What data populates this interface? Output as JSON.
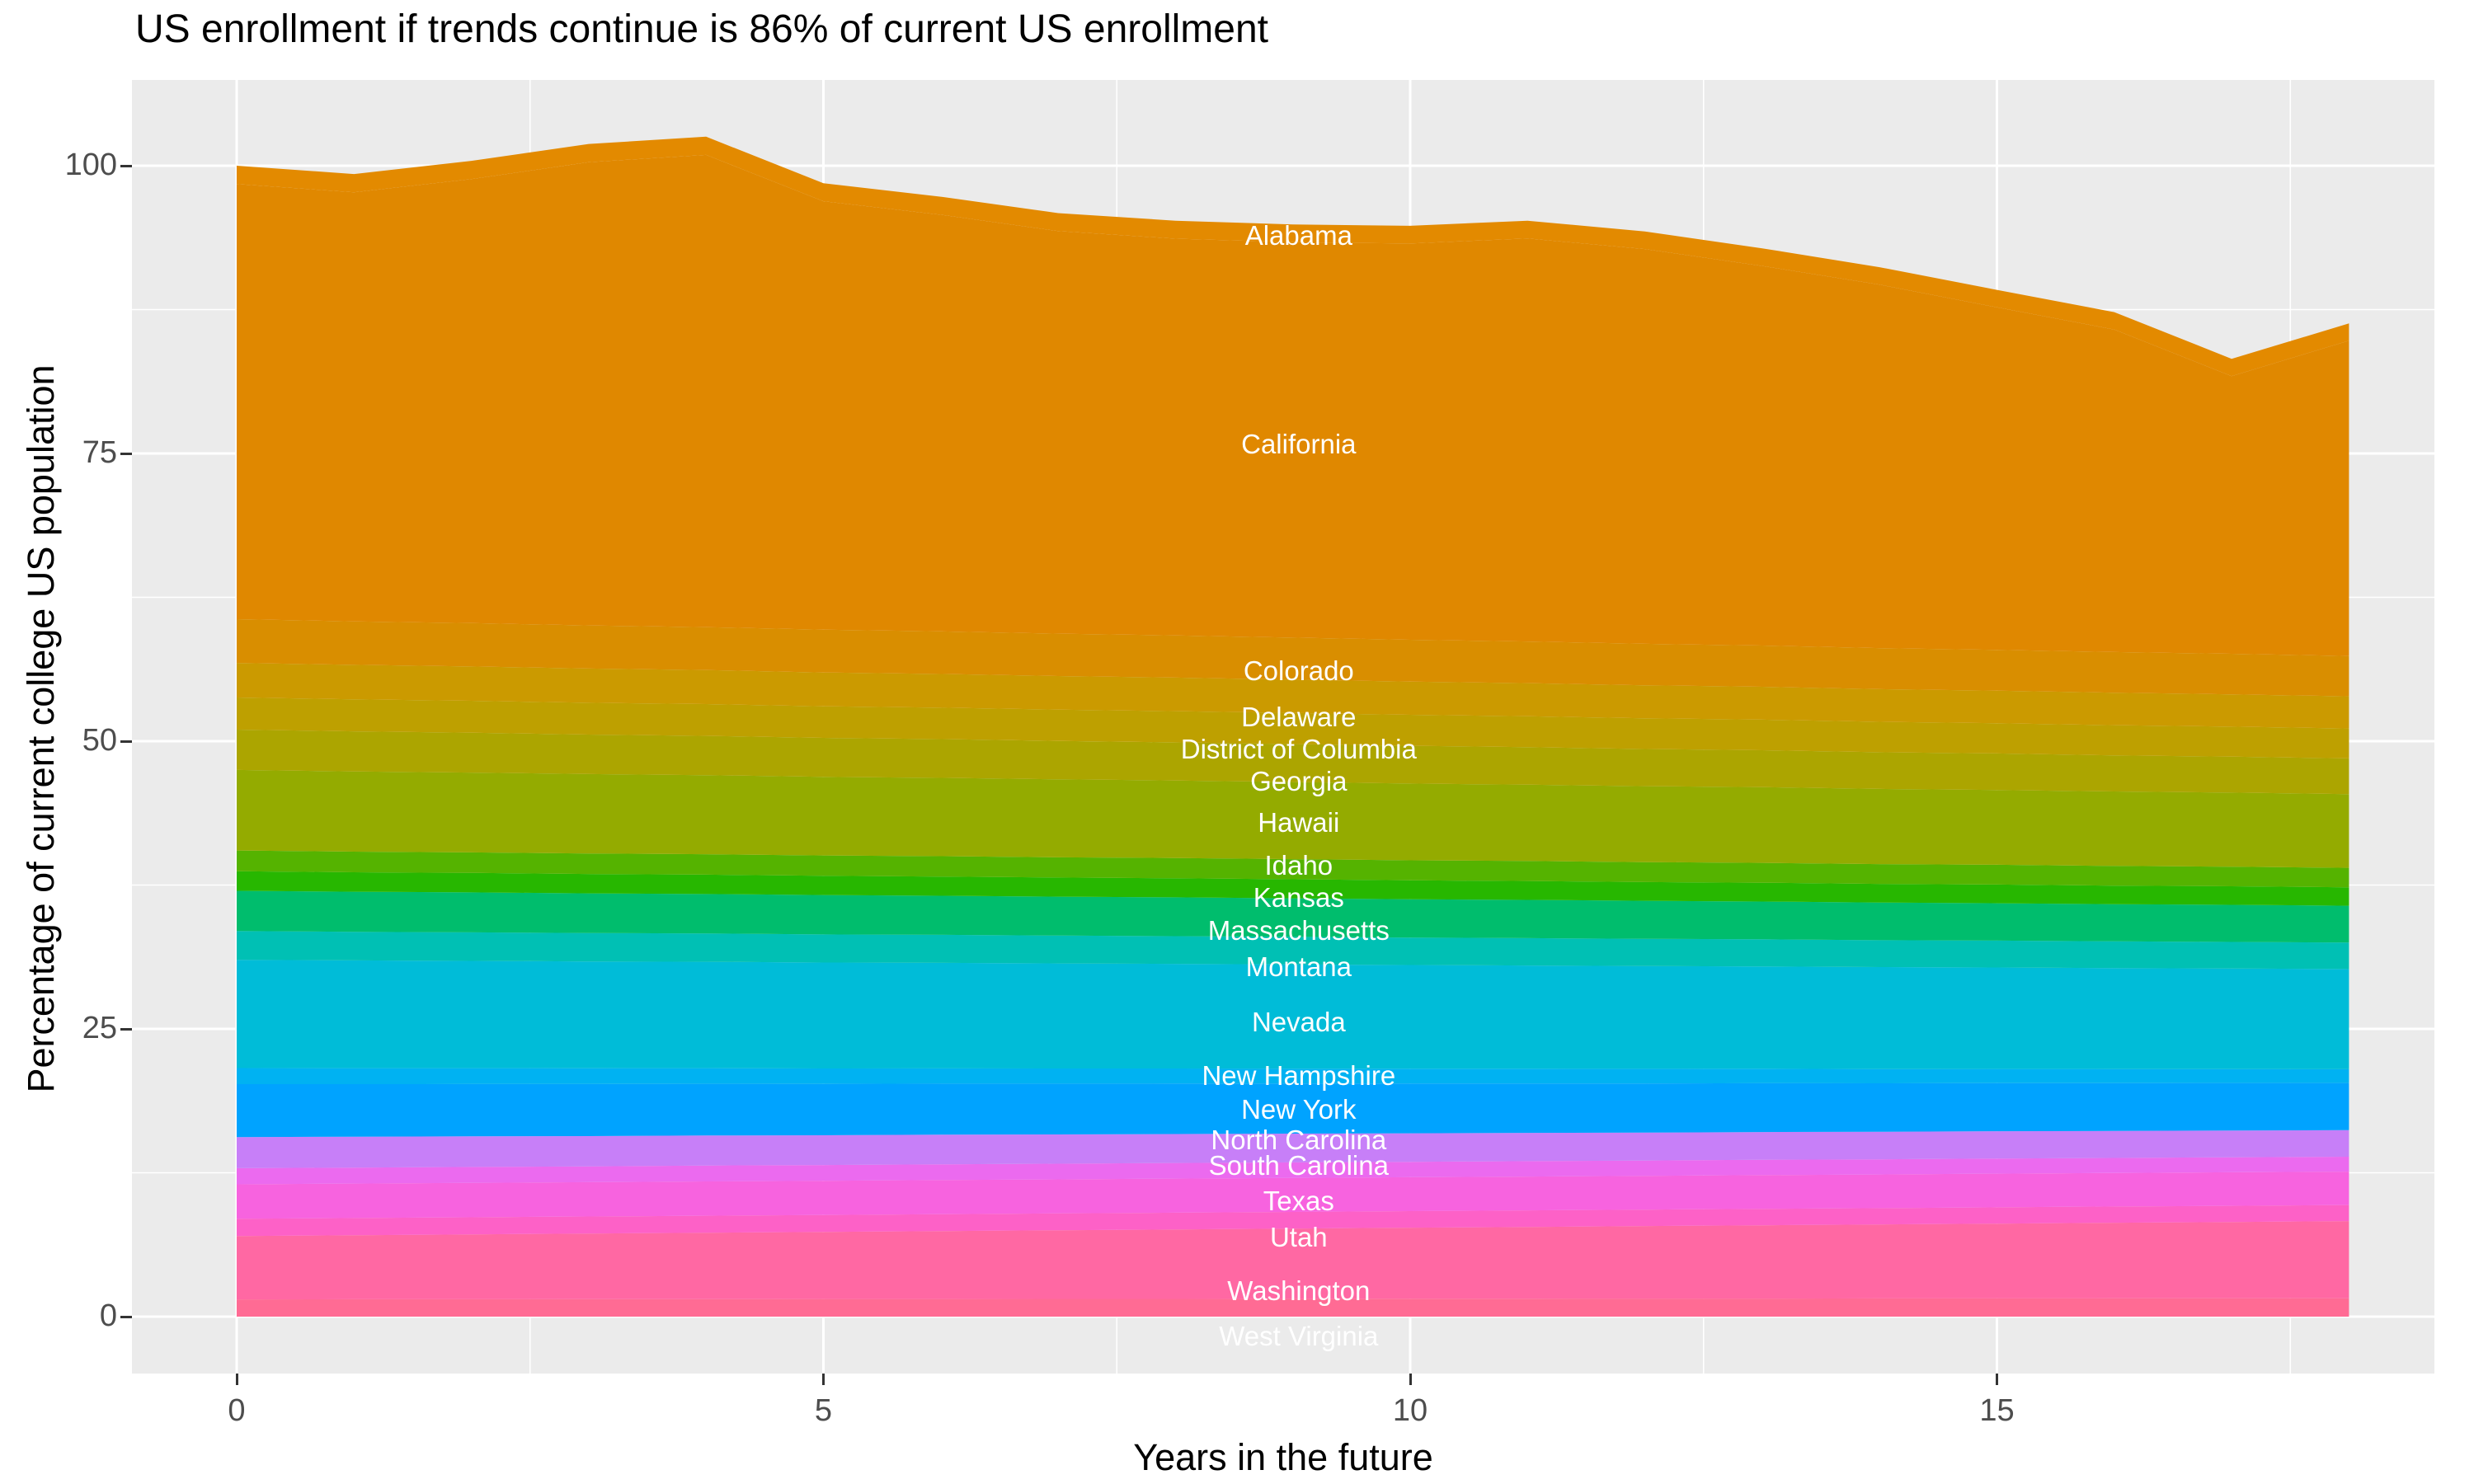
{
  "title": "US enrollment if trends continue is 86% of current US enrollment",
  "x_axis": {
    "label": "Years in the future",
    "ticks": [
      0,
      5,
      10,
      15
    ],
    "minor_ticks": [
      2.5,
      7.5,
      12.5,
      17.5
    ],
    "range": [
      0,
      18
    ]
  },
  "y_axis": {
    "label": "Percentage of current college US population",
    "ticks": [
      0,
      25,
      50,
      75,
      100
    ],
    "minor_ticks": [
      12.5,
      37.5,
      62.5,
      87.5
    ],
    "range": [
      0,
      102.5
    ]
  },
  "theme": {
    "panel_background": "#EBEBEB",
    "grid_color": "#FFFFFF",
    "tick_text_color": "#4D4D4D",
    "tick_mark_color": "#333333",
    "title_color": "#000000",
    "area_label_color": "#FFFFFF"
  },
  "chart_data": {
    "type": "area",
    "stacked": true,
    "title": "US enrollment if trends continue is 86% of current US enrollment",
    "xlabel": "Years in the future",
    "ylabel": "Percentage of current college US population",
    "x": [
      0,
      1,
      2,
      3,
      4,
      5,
      6,
      7,
      8,
      9,
      10,
      11,
      12,
      13,
      14,
      15,
      16,
      17,
      18
    ],
    "ylim": [
      0,
      102.5
    ],
    "total_by_year": [
      100.0,
      99.3,
      100.4,
      101.9,
      102.5,
      98.5,
      97.3,
      95.9,
      95.2,
      94.9,
      94.8,
      95.2,
      94.3,
      92.8,
      91.2,
      89.2,
      87.3,
      83.2,
      86.3
    ],
    "label_x_year": 9.05,
    "series": [
      {
        "name": "Alabama",
        "color": "#E38A00",
        "label_pct": 93.9,
        "values": [
          1.6,
          1.59,
          1.59,
          1.58,
          1.58,
          1.57,
          1.57,
          1.56,
          1.56,
          1.55,
          1.54,
          1.54,
          1.53,
          1.53,
          1.52,
          1.52,
          1.51,
          1.51,
          1.5
        ]
      },
      {
        "name": "California",
        "color": "#E08800",
        "label_pct": 75.8,
        "values": [
          37.8,
          37.28,
          38.57,
          40.25,
          41.03,
          37.22,
          36.2,
          34.98,
          34.47,
          34.35,
          34.43,
          35.02,
          34.3,
          32.98,
          31.57,
          29.75,
          28.03,
          24.12,
          27.4
        ]
      },
      {
        "name": "Colorado",
        "color": "#D98E00",
        "label_pct": 56.1,
        "values": [
          3.8,
          3.78,
          3.77,
          3.75,
          3.73,
          3.72,
          3.7,
          3.68,
          3.67,
          3.65,
          3.63,
          3.62,
          3.6,
          3.58,
          3.57,
          3.55,
          3.53,
          3.52,
          3.5
        ]
      },
      {
        "name": "Delaware",
        "color": "#CB9A00",
        "label_pct": 52.1,
        "values": [
          3.0,
          2.99,
          2.98,
          2.97,
          2.96,
          2.94,
          2.93,
          2.92,
          2.91,
          2.9,
          2.89,
          2.88,
          2.87,
          2.86,
          2.84,
          2.83,
          2.82,
          2.81,
          2.8
        ]
      },
      {
        "name": "District of Columbia",
        "color": "#BEA000",
        "label_pct": 49.3,
        "values": [
          2.8,
          2.79,
          2.78,
          2.77,
          2.76,
          2.74,
          2.73,
          2.72,
          2.71,
          2.7,
          2.69,
          2.68,
          2.67,
          2.66,
          2.64,
          2.63,
          2.62,
          2.61,
          2.6
        ]
      },
      {
        "name": "Georgia",
        "color": "#ACA500",
        "label_pct": 46.5,
        "values": [
          3.5,
          3.48,
          3.46,
          3.43,
          3.41,
          3.39,
          3.37,
          3.34,
          3.32,
          3.3,
          3.28,
          3.26,
          3.23,
          3.21,
          3.19,
          3.17,
          3.14,
          3.12,
          3.1
        ]
      },
      {
        "name": "Hawaii",
        "color": "#94AB00",
        "label_pct": 42.9,
        "values": [
          7.0,
          6.97,
          6.93,
          6.9,
          6.87,
          6.83,
          6.8,
          6.77,
          6.73,
          6.7,
          6.67,
          6.63,
          6.6,
          6.57,
          6.53,
          6.5,
          6.47,
          6.43,
          6.4
        ]
      },
      {
        "name": "Idaho",
        "color": "#55B300",
        "label_pct": 39.2,
        "values": [
          1.8,
          1.79,
          1.79,
          1.78,
          1.78,
          1.77,
          1.77,
          1.76,
          1.76,
          1.75,
          1.74,
          1.74,
          1.73,
          1.73,
          1.72,
          1.72,
          1.71,
          1.71,
          1.7
        ]
      },
      {
        "name": "Kansas",
        "color": "#27B700",
        "label_pct": 36.4,
        "values": [
          1.7,
          1.69,
          1.69,
          1.68,
          1.68,
          1.67,
          1.67,
          1.66,
          1.66,
          1.65,
          1.64,
          1.64,
          1.63,
          1.63,
          1.62,
          1.62,
          1.61,
          1.61,
          1.6
        ]
      },
      {
        "name": "Massachusetts",
        "color": "#00BD6D",
        "label_pct": 33.5,
        "values": [
          3.5,
          3.48,
          3.47,
          3.45,
          3.43,
          3.42,
          3.4,
          3.38,
          3.37,
          3.35,
          3.33,
          3.32,
          3.3,
          3.28,
          3.27,
          3.25,
          3.23,
          3.22,
          3.2
        ]
      },
      {
        "name": "Montana",
        "color": "#00C0B4",
        "label_pct": 30.4,
        "values": [
          2.5,
          2.49,
          2.48,
          2.47,
          2.46,
          2.44,
          2.43,
          2.42,
          2.41,
          2.4,
          2.39,
          2.38,
          2.37,
          2.36,
          2.34,
          2.33,
          2.32,
          2.31,
          2.3
        ]
      },
      {
        "name": "Nevada",
        "color": "#00BCD8",
        "label_pct": 25.6,
        "values": [
          9.4,
          9.36,
          9.32,
          9.28,
          9.24,
          9.21,
          9.17,
          9.13,
          9.09,
          9.05,
          9.01,
          8.97,
          8.93,
          8.89,
          8.86,
          8.82,
          8.78,
          8.74,
          8.7
        ]
      },
      {
        "name": "New Hampshire",
        "color": "#00B2F2",
        "label_pct": 20.9,
        "values": [
          1.4,
          1.39,
          1.38,
          1.37,
          1.36,
          1.34,
          1.33,
          1.32,
          1.31,
          1.3,
          1.29,
          1.28,
          1.27,
          1.26,
          1.24,
          1.23,
          1.22,
          1.21,
          1.2
        ]
      },
      {
        "name": "New York",
        "color": "#00A3FF",
        "label_pct": 18.0,
        "values": [
          4.6,
          4.57,
          4.54,
          4.52,
          4.49,
          4.46,
          4.43,
          4.41,
          4.38,
          4.35,
          4.32,
          4.29,
          4.27,
          4.24,
          4.21,
          4.18,
          4.16,
          4.13,
          4.1
        ]
      },
      {
        "name": "North Carolina",
        "color": "#C77FF8",
        "label_pct": 15.3,
        "values": [
          2.7,
          2.68,
          2.66,
          2.63,
          2.61,
          2.59,
          2.57,
          2.54,
          2.52,
          2.5,
          2.48,
          2.46,
          2.43,
          2.41,
          2.39,
          2.37,
          2.34,
          2.32,
          2.3
        ]
      },
      {
        "name": "South Carolina",
        "color": "#EB6AEF",
        "label_pct": 13.1,
        "values": [
          1.4,
          1.39,
          1.39,
          1.38,
          1.38,
          1.37,
          1.37,
          1.36,
          1.36,
          1.35,
          1.34,
          1.34,
          1.33,
          1.33,
          1.32,
          1.32,
          1.31,
          1.31,
          1.3
        ]
      },
      {
        "name": "Texas",
        "color": "#F763DF",
        "label_pct": 10.0,
        "values": [
          3.0,
          2.99,
          2.99,
          2.98,
          2.98,
          2.97,
          2.97,
          2.96,
          2.96,
          2.95,
          2.94,
          2.94,
          2.93,
          2.93,
          2.92,
          2.92,
          2.91,
          2.91,
          2.9
        ]
      },
      {
        "name": "Utah",
        "color": "#FD61C7",
        "label_pct": 6.9,
        "values": [
          1.5,
          1.49,
          1.49,
          1.48,
          1.48,
          1.47,
          1.47,
          1.46,
          1.46,
          1.45,
          1.44,
          1.44,
          1.43,
          1.43,
          1.42,
          1.42,
          1.41,
          1.41,
          1.4
        ]
      },
      {
        "name": "Washington",
        "color": "#FF68A3",
        "label_pct": 2.2,
        "values": [
          5.5,
          5.57,
          5.63,
          5.7,
          5.77,
          5.83,
          5.9,
          5.97,
          6.03,
          6.1,
          6.17,
          6.23,
          6.3,
          6.37,
          6.43,
          6.5,
          6.57,
          6.63,
          6.7
        ]
      },
      {
        "name": "West Virginia",
        "color": "#FF6B94",
        "label_pct": -1.7,
        "values": [
          1.5,
          1.51,
          1.51,
          1.52,
          1.52,
          1.53,
          1.53,
          1.54,
          1.54,
          1.55,
          1.56,
          1.56,
          1.57,
          1.57,
          1.58,
          1.58,
          1.59,
          1.59,
          1.6
        ]
      }
    ]
  }
}
